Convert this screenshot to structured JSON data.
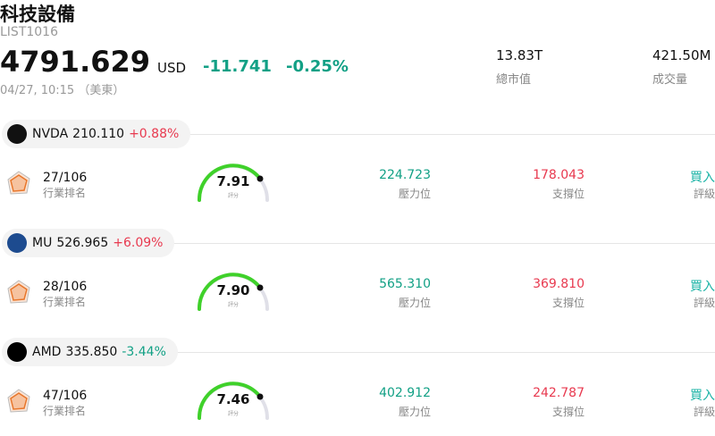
{
  "header": {
    "title": "科技設備",
    "code": "LIST1016",
    "price": "4791.629",
    "currency": "USD",
    "change": "-11.741",
    "change_percent": "-0.25%",
    "time": "04/27, 10:15 （美東）",
    "stats": [
      {
        "value": "13.83T",
        "label": "總市值"
      },
      {
        "value": "421.50M",
        "label": "成交量"
      }
    ]
  },
  "stocks": [
    {
      "symbol": "NVDA",
      "price": "210.110",
      "change_percent": "+0.88%",
      "rank": "27/106",
      "rank_label": "行業排名",
      "score": "7.91",
      "score_label": "評分",
      "resistance": "224.723",
      "resistance_label": "壓力位",
      "support": "178.043",
      "support_label": "支撐位",
      "rating": "買入",
      "rating_label": "評級"
    },
    {
      "symbol": "MU",
      "price": "526.965",
      "change_percent": "+6.09%",
      "rank": "28/106",
      "rank_label": "行業排名",
      "score": "7.90",
      "score_label": "評分",
      "resistance": "565.310",
      "resistance_label": "壓力位",
      "support": "369.810",
      "support_label": "支撐位",
      "rating": "買入",
      "rating_label": "評級"
    },
    {
      "symbol": "AMD",
      "price": "335.850",
      "change_percent": "-3.44%",
      "rank": "47/106",
      "rank_label": "行業排名",
      "score": "7.46",
      "score_label": "評分",
      "resistance": "402.912",
      "resistance_label": "壓力位",
      "support": "242.787",
      "support_label": "支撐位",
      "rating": "買入",
      "rating_label": "評級"
    }
  ]
}
